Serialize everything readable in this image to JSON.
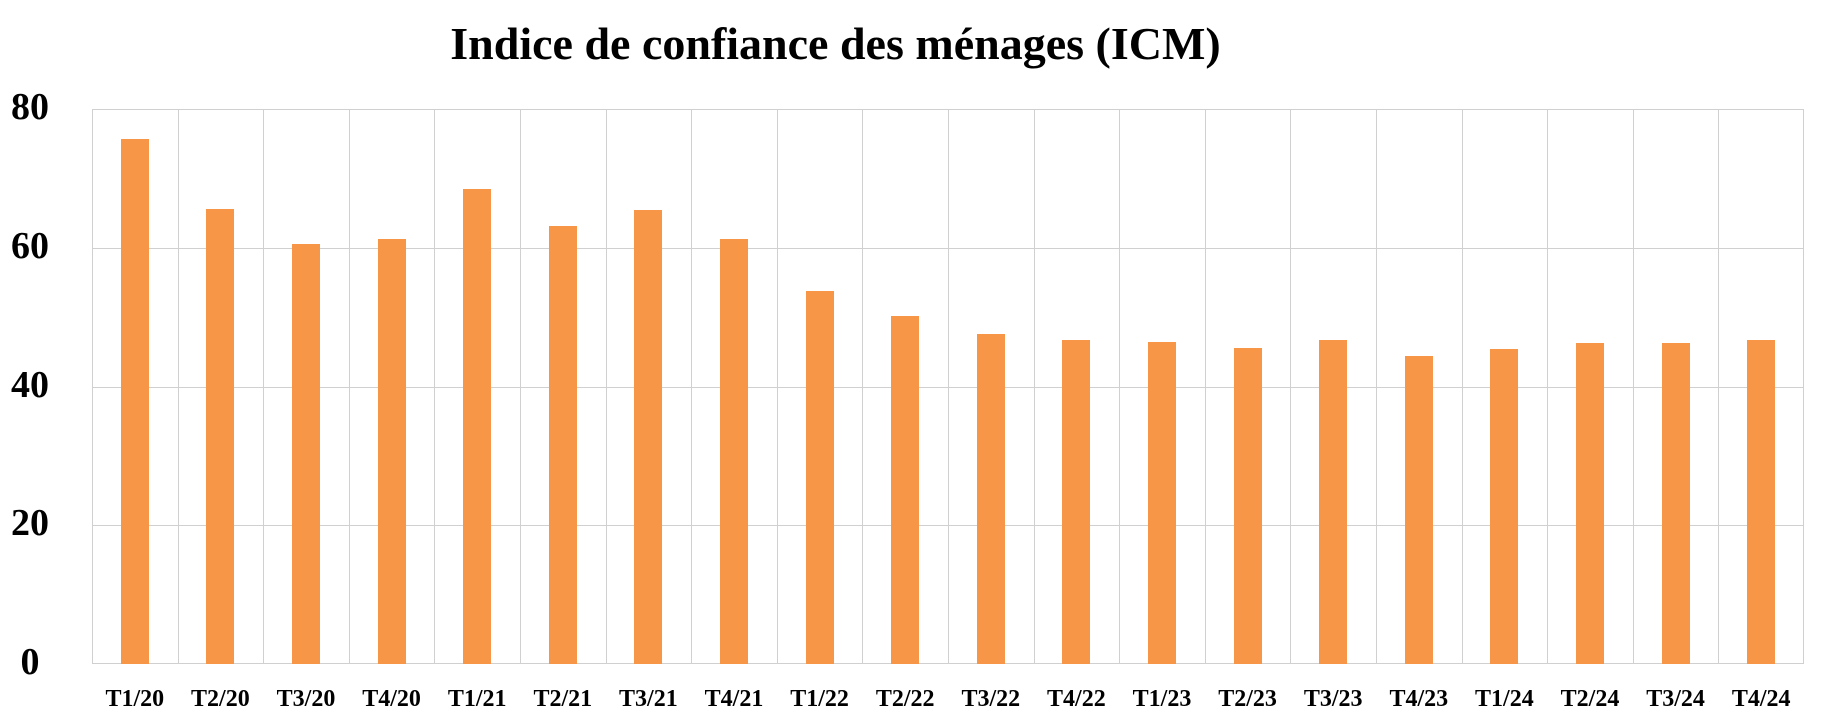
{
  "chart_data": {
    "type": "bar",
    "title": "Indice de confiance des ménages (ICM)",
    "xlabel": "",
    "ylabel": "",
    "ylim": [
      0,
      80
    ],
    "yticks": [
      0,
      20,
      40,
      60,
      80
    ],
    "grid": true,
    "legend": null,
    "bar_color": "#F79646",
    "categories": [
      "T1/20",
      "T2/20",
      "T3/20",
      "T4/20",
      "T1/21",
      "T2/21",
      "T3/21",
      "T4/21",
      "T1/22",
      "T2/22",
      "T3/22",
      "T4/22",
      "T1/23",
      "T2/23",
      "T3/23",
      "T4/23",
      "T1/24",
      "T2/24",
      "T3/24",
      "T4/24"
    ],
    "values": [
      75.7,
      65.6,
      60.6,
      61.2,
      68.4,
      63.1,
      65.5,
      61.2,
      53.7,
      50.1,
      47.5,
      46.7,
      46.4,
      45.5,
      46.7,
      44.4,
      45.4,
      46.3,
      46.3,
      46.7
    ]
  }
}
